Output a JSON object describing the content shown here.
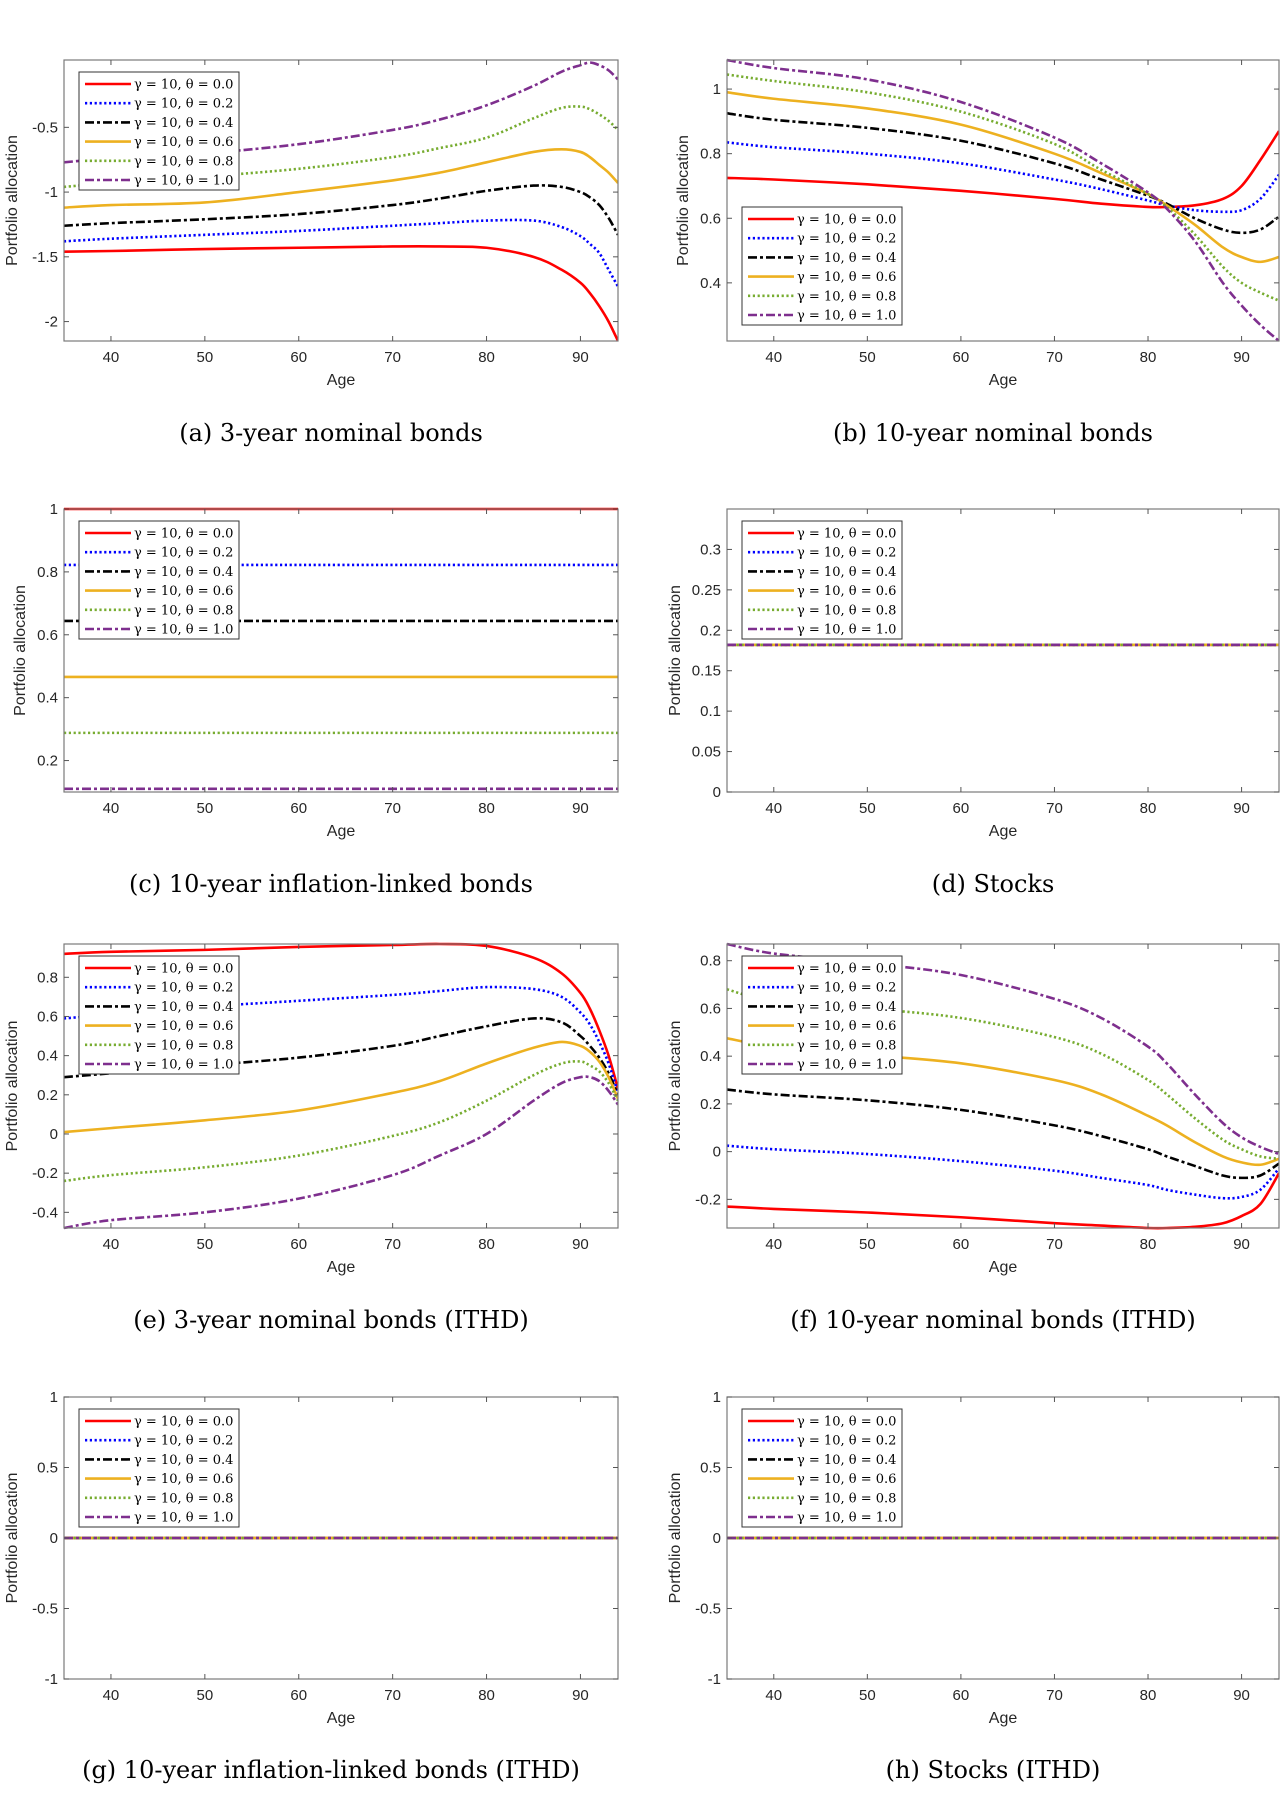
{
  "chart_data": {
    "type": "line",
    "shared": {
      "xlabel": "Age",
      "ylabel": "Portfolio allocation",
      "xlim": [
        35,
        94
      ],
      "xticks": [
        40,
        50,
        60,
        70,
        80,
        90
      ],
      "grid": false,
      "series_styles": [
        {
          "name": "γ = 10, θ = 0.0",
          "color": "#ff0000",
          "dash": "solid"
        },
        {
          "name": "γ = 10, θ = 0.2",
          "color": "#0000ff",
          "dash": "dotted"
        },
        {
          "name": "γ = 10, θ = 0.4",
          "color": "#000000",
          "dash": "dashdot"
        },
        {
          "name": "γ = 10, θ = 0.6",
          "color": "#edb120",
          "dash": "solid"
        },
        {
          "name": "γ = 10, θ = 0.8",
          "color": "#77ac30",
          "dash": "dotted"
        },
        {
          "name": "γ = 10, θ = 1.0",
          "color": "#7e2f8e",
          "dash": "dashdot"
        }
      ]
    },
    "panels": [
      {
        "id": "a",
        "caption": "(a) 3-year nominal bonds",
        "ylim": [
          -2.15,
          0.02
        ],
        "yticks": [
          -2,
          -1.5,
          -1,
          -0.5
        ],
        "ytick_labels": [
          "-2",
          "-1.5",
          "-1",
          "-0.5"
        ],
        "legend": "top-left",
        "x": [
          35,
          40,
          50,
          60,
          70,
          75,
          80,
          85,
          88,
          90,
          91,
          92,
          93,
          94
        ],
        "series": [
          {
            "values": [
              -1.46,
              -1.455,
              -1.44,
              -1.43,
              -1.42,
              -1.42,
              -1.43,
              -1.5,
              -1.6,
              -1.7,
              -1.78,
              -1.88,
              -2.0,
              -2.15
            ]
          },
          {
            "values": [
              -1.38,
              -1.36,
              -1.33,
              -1.3,
              -1.26,
              -1.24,
              -1.22,
              -1.22,
              -1.27,
              -1.34,
              -1.4,
              -1.47,
              -1.6,
              -1.73
            ]
          },
          {
            "values": [
              -1.26,
              -1.24,
              -1.21,
              -1.17,
              -1.1,
              -1.05,
              -0.99,
              -0.95,
              -0.96,
              -1.0,
              -1.04,
              -1.1,
              -1.2,
              -1.33
            ]
          },
          {
            "values": [
              -1.12,
              -1.1,
              -1.08,
              -1.0,
              -0.91,
              -0.85,
              -0.77,
              -0.69,
              -0.67,
              -0.69,
              -0.73,
              -0.79,
              -0.85,
              -0.93
            ]
          },
          {
            "values": [
              -0.96,
              -0.93,
              -0.88,
              -0.82,
              -0.73,
              -0.66,
              -0.58,
              -0.43,
              -0.35,
              -0.34,
              -0.36,
              -0.4,
              -0.45,
              -0.52
            ]
          },
          {
            "values": [
              -0.77,
              -0.74,
              -0.7,
              -0.63,
              -0.52,
              -0.44,
              -0.33,
              -0.18,
              -0.07,
              -0.02,
              0.0,
              -0.02,
              -0.06,
              -0.13
            ]
          }
        ]
      },
      {
        "id": "b",
        "caption": "(b) 10-year nominal bonds",
        "ylim": [
          0.22,
          1.09
        ],
        "yticks": [
          0.4,
          0.6,
          0.8,
          1
        ],
        "ytick_labels": [
          "0.4",
          "0.6",
          "0.8",
          "1"
        ],
        "legend": "bottom-left",
        "x": [
          35,
          40,
          50,
          60,
          70,
          75,
          80,
          82,
          85,
          88,
          90,
          92,
          94
        ],
        "series": [
          {
            "values": [
              0.725,
              0.72,
              0.705,
              0.685,
              0.66,
              0.645,
              0.635,
              0.635,
              0.64,
              0.66,
              0.7,
              0.78,
              0.87
            ]
          },
          {
            "values": [
              0.835,
              0.82,
              0.8,
              0.77,
              0.72,
              0.69,
              0.655,
              0.64,
              0.625,
              0.62,
              0.625,
              0.66,
              0.735
            ]
          },
          {
            "values": [
              0.925,
              0.905,
              0.88,
              0.84,
              0.77,
              0.72,
              0.67,
              0.645,
              0.6,
              0.565,
              0.555,
              0.565,
              0.605
            ]
          },
          {
            "values": [
              0.99,
              0.97,
              0.94,
              0.89,
              0.8,
              0.74,
              0.675,
              0.64,
              0.58,
              0.51,
              0.48,
              0.465,
              0.48
            ]
          },
          {
            "values": [
              1.045,
              1.025,
              0.99,
              0.93,
              0.83,
              0.75,
              0.675,
              0.635,
              0.55,
              0.45,
              0.4,
              0.37,
              0.345
            ]
          },
          {
            "values": [
              1.09,
              1.065,
              1.03,
              0.96,
              0.85,
              0.77,
              0.68,
              0.63,
              0.53,
              0.4,
              0.33,
              0.27,
              0.22
            ]
          }
        ]
      },
      {
        "id": "c",
        "caption": "(c) 10-year inflation-linked bonds",
        "ylim": [
          0.1,
          1.0
        ],
        "yticks": [
          0.2,
          0.4,
          0.6,
          0.8,
          1
        ],
        "ytick_labels": [
          "0.2",
          "0.4",
          "0.6",
          "0.8",
          "1"
        ],
        "legend": "top-left",
        "x": [
          35,
          94
        ],
        "series": [
          {
            "values": [
              1.0,
              1.0
            ]
          },
          {
            "values": [
              0.822,
              0.822
            ]
          },
          {
            "values": [
              0.644,
              0.644
            ]
          },
          {
            "values": [
              0.466,
              0.466
            ]
          },
          {
            "values": [
              0.288,
              0.288
            ]
          },
          {
            "values": [
              0.11,
              0.11
            ]
          }
        ]
      },
      {
        "id": "d",
        "caption": "(d) Stocks",
        "ylim": [
          0,
          0.35
        ],
        "yticks": [
          0,
          0.05,
          0.1,
          0.15,
          0.2,
          0.25,
          0.3
        ],
        "ytick_labels": [
          "0",
          "0.05",
          "0.1",
          "0.15",
          "0.2",
          "0.25",
          "0.3"
        ],
        "legend": "top-left",
        "x": [
          35,
          94
        ],
        "series": [
          {
            "values": [
              0.182,
              0.182
            ]
          },
          {
            "values": [
              0.182,
              0.182
            ]
          },
          {
            "values": [
              0.182,
              0.182
            ]
          },
          {
            "values": [
              0.182,
              0.182
            ]
          },
          {
            "values": [
              0.182,
              0.182
            ]
          },
          {
            "values": [
              0.182,
              0.182
            ]
          }
        ]
      },
      {
        "id": "e",
        "caption": "(e) 3-year nominal bonds (ITHD)",
        "ylim": [
          -0.48,
          0.97
        ],
        "yticks": [
          -0.4,
          -0.2,
          0,
          0.2,
          0.4,
          0.6,
          0.8
        ],
        "ytick_labels": [
          "-0.4",
          "-0.2",
          "0",
          "0.2",
          "0.4",
          "0.6",
          "0.8"
        ],
        "legend": "top-left",
        "x": [
          35,
          40,
          50,
          60,
          70,
          75,
          80,
          85,
          88,
          90,
          91,
          92,
          93,
          94
        ],
        "series": [
          {
            "values": [
              0.92,
              0.93,
              0.94,
              0.955,
              0.965,
              0.97,
              0.96,
              0.9,
              0.82,
              0.72,
              0.64,
              0.53,
              0.4,
              0.23
            ]
          },
          {
            "values": [
              0.59,
              0.61,
              0.65,
              0.68,
              0.71,
              0.73,
              0.75,
              0.74,
              0.7,
              0.62,
              0.56,
              0.47,
              0.36,
              0.21
            ]
          },
          {
            "values": [
              0.29,
              0.31,
              0.35,
              0.39,
              0.45,
              0.5,
              0.55,
              0.59,
              0.57,
              0.5,
              0.45,
              0.39,
              0.31,
              0.2
            ]
          },
          {
            "values": [
              0.01,
              0.03,
              0.07,
              0.12,
              0.21,
              0.27,
              0.36,
              0.44,
              0.47,
              0.45,
              0.42,
              0.37,
              0.29,
              0.18
            ]
          },
          {
            "values": [
              -0.24,
              -0.21,
              -0.17,
              -0.11,
              -0.01,
              0.06,
              0.17,
              0.3,
              0.36,
              0.37,
              0.35,
              0.32,
              0.26,
              0.17
            ]
          },
          {
            "values": [
              -0.48,
              -0.44,
              -0.4,
              -0.33,
              -0.21,
              -0.11,
              0.0,
              0.17,
              0.26,
              0.29,
              0.29,
              0.27,
              0.22,
              0.15
            ]
          }
        ]
      },
      {
        "id": "f",
        "caption": "(f) 10-year nominal bonds (ITHD)",
        "ylim": [
          -0.32,
          0.87
        ],
        "yticks": [
          -0.2,
          0,
          0.2,
          0.4,
          0.6,
          0.8
        ],
        "ytick_labels": [
          "-0.2",
          "0",
          "0.2",
          "0.4",
          "0.6",
          "0.8"
        ],
        "legend": "top-left",
        "x": [
          35,
          40,
          50,
          60,
          70,
          75,
          80,
          82,
          85,
          88,
          90,
          92,
          94
        ],
        "series": [
          {
            "values": [
              -0.23,
              -0.24,
              -0.255,
              -0.275,
              -0.3,
              -0.31,
              -0.32,
              -0.32,
              -0.315,
              -0.3,
              -0.27,
              -0.22,
              -0.09
            ]
          },
          {
            "values": [
              0.025,
              0.01,
              -0.01,
              -0.04,
              -0.08,
              -0.11,
              -0.14,
              -0.16,
              -0.18,
              -0.195,
              -0.19,
              -0.16,
              -0.07
            ]
          },
          {
            "values": [
              0.26,
              0.24,
              0.215,
              0.175,
              0.11,
              0.065,
              0.01,
              -0.02,
              -0.06,
              -0.1,
              -0.11,
              -0.1,
              -0.05
            ]
          },
          {
            "values": [
              0.475,
              0.44,
              0.405,
              0.37,
              0.3,
              0.24,
              0.15,
              0.11,
              0.04,
              -0.02,
              -0.045,
              -0.055,
              -0.03
            ]
          },
          {
            "values": [
              0.68,
              0.63,
              0.6,
              0.56,
              0.48,
              0.41,
              0.3,
              0.24,
              0.14,
              0.05,
              0.01,
              -0.02,
              -0.03
            ]
          },
          {
            "values": [
              0.87,
              0.83,
              0.79,
              0.74,
              0.64,
              0.56,
              0.44,
              0.37,
              0.24,
              0.12,
              0.06,
              0.02,
              -0.01
            ]
          }
        ]
      },
      {
        "id": "g",
        "caption": "(g) 10-year inflation-linked bonds (ITHD)",
        "ylim": [
          -1,
          1
        ],
        "yticks": [
          -1,
          -0.5,
          0,
          0.5,
          1
        ],
        "ytick_labels": [
          "-1",
          "-0.5",
          "0",
          "0.5",
          "1"
        ],
        "legend": "top-left",
        "x": [
          35,
          94
        ],
        "series": [
          {
            "values": [
              0,
              0
            ]
          },
          {
            "values": [
              0,
              0
            ]
          },
          {
            "values": [
              0,
              0
            ]
          },
          {
            "values": [
              0,
              0
            ]
          },
          {
            "values": [
              0,
              0
            ]
          },
          {
            "values": [
              0,
              0
            ]
          }
        ]
      },
      {
        "id": "h",
        "caption": "(h) Stocks (ITHD)",
        "ylim": [
          -1,
          1
        ],
        "yticks": [
          -1,
          -0.5,
          0,
          0.5,
          1
        ],
        "ytick_labels": [
          "-1",
          "-0.5",
          "0",
          "0.5",
          "1"
        ],
        "legend": "top-left",
        "x": [
          35,
          94
        ],
        "series": [
          {
            "values": [
              0,
              0
            ]
          },
          {
            "values": [
              0,
              0
            ]
          },
          {
            "values": [
              0,
              0
            ]
          },
          {
            "values": [
              0,
              0
            ]
          },
          {
            "values": [
              0,
              0
            ]
          },
          {
            "values": [
              0,
              0
            ]
          }
        ]
      }
    ]
  }
}
